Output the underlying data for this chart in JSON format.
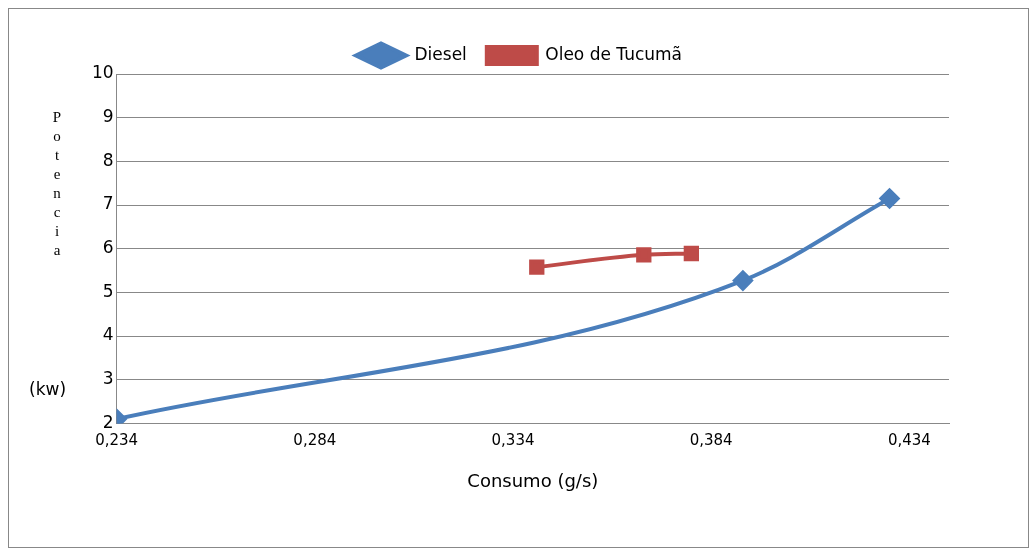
{
  "chart_data": {
    "type": "line",
    "xlabel": "Consumo (g/s)",
    "ylabel": "Potencia",
    "annotations": [
      "(kw)"
    ],
    "series": [
      {
        "name": "Diesel",
        "color": "#4a7ebb",
        "marker": "diamond",
        "x": [
          0.234,
          0.392,
          0.429
        ],
        "values": [
          2.1,
          5.27,
          7.15
        ]
      },
      {
        "name": "Oleo de Tucumã",
        "color": "#be4b48",
        "marker": "square",
        "x": [
          0.34,
          0.367,
          0.379
        ],
        "values": [
          5.58,
          5.86,
          5.89
        ]
      }
    ],
    "xlim": [
      0.234,
      0.444
    ],
    "xticks": [
      {
        "value": 0.234,
        "label": "0,234"
      },
      {
        "value": 0.284,
        "label": "0,284"
      },
      {
        "value": 0.334,
        "label": "0,334"
      },
      {
        "value": 0.384,
        "label": "0,384"
      },
      {
        "value": 0.434,
        "label": "0,434"
      }
    ],
    "ylim": [
      2,
      10
    ],
    "yticks": [
      2,
      3,
      4,
      5,
      6,
      7,
      8,
      9,
      10
    ],
    "grid": "y",
    "legend": "top"
  }
}
